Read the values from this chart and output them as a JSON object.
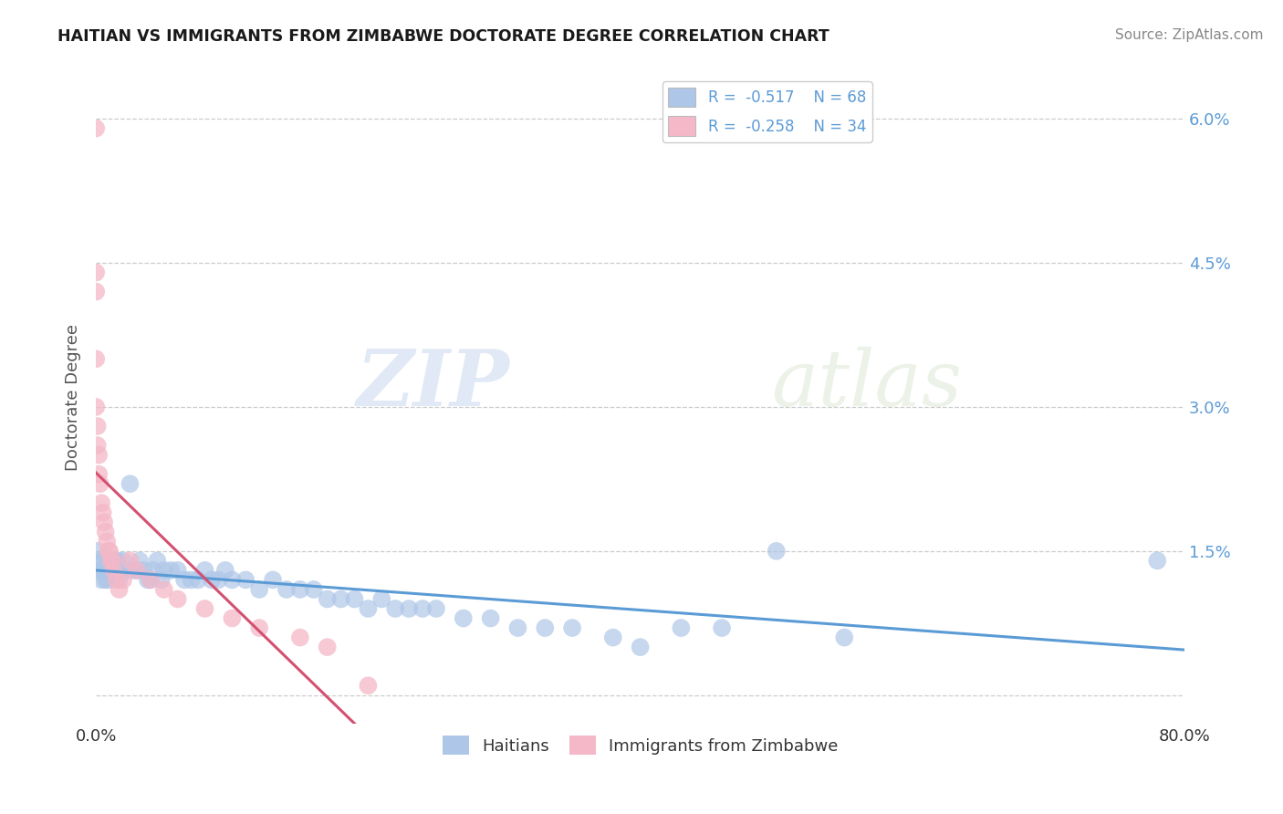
{
  "title": "HAITIAN VS IMMIGRANTS FROM ZIMBABWE DOCTORATE DEGREE CORRELATION CHART",
  "source": "Source: ZipAtlas.com",
  "ylabel": "Doctorate Degree",
  "xlim": [
    0.0,
    0.8
  ],
  "ylim": [
    -0.003,
    0.065
  ],
  "x_ticks": [
    0.0,
    0.1,
    0.2,
    0.3,
    0.4,
    0.5,
    0.6,
    0.7,
    0.8
  ],
  "x_tick_labels": [
    "0.0%",
    "",
    "",
    "",
    "",
    "",
    "",
    "",
    "80.0%"
  ],
  "y_ticks": [
    0.0,
    0.015,
    0.03,
    0.045,
    0.06
  ],
  "y_tick_labels": [
    "",
    "1.5%",
    "3.0%",
    "4.5%",
    "6.0%"
  ],
  "legend_blue_label": "R =  -0.517    N = 68",
  "legend_pink_label": "R =  -0.258    N = 34",
  "legend_blue_color": "#aec6e8",
  "legend_pink_color": "#f4b8c8",
  "scatter_blue_color": "#aec6e8",
  "scatter_pink_color": "#f4b8c8",
  "line_blue_color": "#5b9bd5",
  "line_pink_color": "#d45070",
  "watermark_zip": "ZIP",
  "watermark_atlas": "atlas",
  "bottom_legend_blue": "Haitians",
  "bottom_legend_pink": "Immigrants from Zimbabwe",
  "blue_x": [
    0.001,
    0.002,
    0.003,
    0.004,
    0.005,
    0.006,
    0.007,
    0.008,
    0.009,
    0.01,
    0.011,
    0.012,
    0.013,
    0.014,
    0.015,
    0.016,
    0.017,
    0.018,
    0.02,
    0.022,
    0.025,
    0.028,
    0.03,
    0.032,
    0.035,
    0.038,
    0.04,
    0.042,
    0.045,
    0.048,
    0.05,
    0.055,
    0.06,
    0.065,
    0.07,
    0.075,
    0.08,
    0.085,
    0.09,
    0.095,
    0.1,
    0.11,
    0.12,
    0.13,
    0.14,
    0.15,
    0.16,
    0.17,
    0.18,
    0.19,
    0.2,
    0.21,
    0.22,
    0.23,
    0.24,
    0.25,
    0.27,
    0.29,
    0.31,
    0.33,
    0.35,
    0.38,
    0.4,
    0.43,
    0.46,
    0.5,
    0.55,
    0.78
  ],
  "blue_y": [
    0.015,
    0.013,
    0.014,
    0.012,
    0.014,
    0.013,
    0.012,
    0.013,
    0.012,
    0.014,
    0.013,
    0.013,
    0.014,
    0.013,
    0.013,
    0.014,
    0.012,
    0.013,
    0.014,
    0.013,
    0.022,
    0.013,
    0.013,
    0.014,
    0.013,
    0.012,
    0.012,
    0.013,
    0.014,
    0.012,
    0.013,
    0.013,
    0.013,
    0.012,
    0.012,
    0.012,
    0.013,
    0.012,
    0.012,
    0.013,
    0.012,
    0.012,
    0.011,
    0.012,
    0.011,
    0.011,
    0.011,
    0.01,
    0.01,
    0.01,
    0.009,
    0.01,
    0.009,
    0.009,
    0.009,
    0.009,
    0.008,
    0.008,
    0.007,
    0.007,
    0.007,
    0.006,
    0.005,
    0.007,
    0.007,
    0.015,
    0.006,
    0.014
  ],
  "pink_x": [
    0.0,
    0.0,
    0.0,
    0.0,
    0.0,
    0.001,
    0.001,
    0.002,
    0.002,
    0.003,
    0.004,
    0.005,
    0.006,
    0.007,
    0.008,
    0.009,
    0.01,
    0.011,
    0.012,
    0.013,
    0.015,
    0.017,
    0.02,
    0.025,
    0.03,
    0.04,
    0.05,
    0.06,
    0.08,
    0.1,
    0.12,
    0.15,
    0.17,
    0.2
  ],
  "pink_y": [
    0.059,
    0.044,
    0.042,
    0.035,
    0.03,
    0.028,
    0.026,
    0.025,
    0.023,
    0.022,
    0.02,
    0.019,
    0.018,
    0.017,
    0.016,
    0.015,
    0.015,
    0.014,
    0.014,
    0.013,
    0.012,
    0.011,
    0.012,
    0.014,
    0.013,
    0.012,
    0.011,
    0.01,
    0.009,
    0.008,
    0.007,
    0.006,
    0.005,
    0.001
  ]
}
